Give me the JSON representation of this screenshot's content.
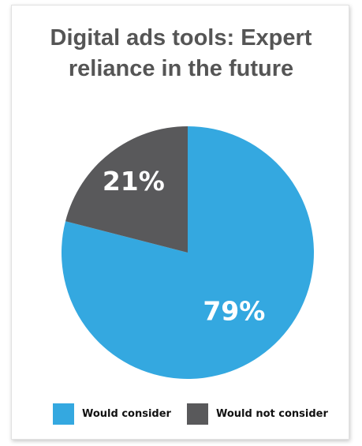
{
  "colors": {
    "would_consider": "#34a8e0",
    "would_not_consider": "#59595b"
  },
  "chart_data": {
    "type": "pie",
    "title": "Digital ads tools: Expert reliance in the future",
    "title_lines": [
      "Digital ads tools: Expert",
      "reliance in the future"
    ],
    "slices": [
      {
        "label": "Would consider",
        "value": 79,
        "display": "79%",
        "color": "#34a8e0"
      },
      {
        "label": "Would not consider",
        "value": 21,
        "display": "21%",
        "color": "#59595b"
      }
    ],
    "legend": {
      "position": "bottom",
      "items": [
        "Would consider",
        "Would not consider"
      ]
    }
  }
}
